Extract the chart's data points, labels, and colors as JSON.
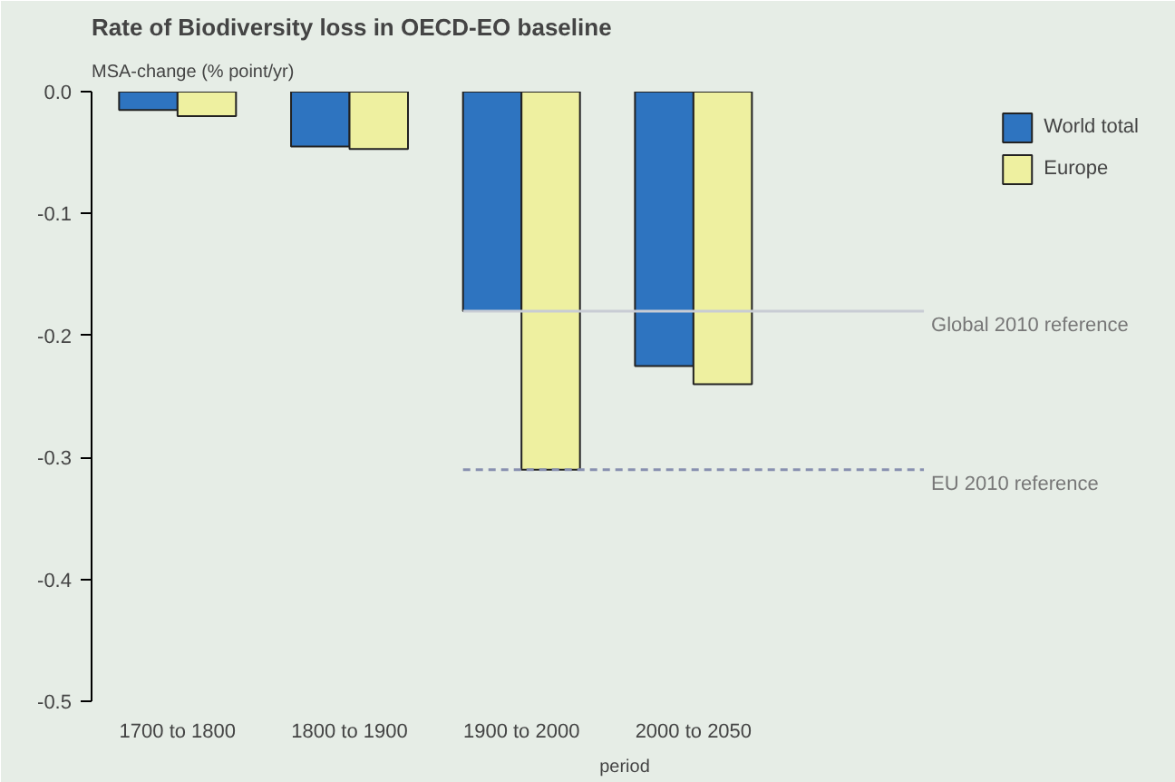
{
  "chart_data": {
    "type": "bar",
    "title": "Rate of Biodiversity loss in OECD-EO baseline",
    "ylabel": "MSA-change (% point/yr)",
    "xlabel": "period",
    "categories": [
      "1700 to 1800",
      "1800 to 1900",
      "1900 to 2000",
      "2000 to 2050"
    ],
    "series": [
      {
        "name": "World total",
        "color": "#2e74c0",
        "values": [
          -0.015,
          -0.045,
          -0.18,
          -0.225
        ]
      },
      {
        "name": "Europe",
        "color": "#eef0a0",
        "values": [
          -0.02,
          -0.047,
          -0.31,
          -0.24
        ]
      }
    ],
    "ylim": [
      -0.5,
      0.0
    ],
    "yticks": [
      {
        "value": 0.0,
        "label": "0.0"
      },
      {
        "value": -0.1,
        "label": "-0.1"
      },
      {
        "value": -0.2,
        "label": "-0.2"
      },
      {
        "value": -0.3,
        "label": "-0.3"
      },
      {
        "value": -0.4,
        "label": "-0.4"
      },
      {
        "value": -0.5,
        "label": "-0.5"
      }
    ],
    "ref_lines": [
      {
        "axis": "y",
        "value": -0.18,
        "label": "Global 2010 reference",
        "color": "#c8ccd4",
        "line_style": "solid"
      },
      {
        "axis": "y",
        "value": -0.31,
        "label": "EU 2010 reference",
        "color": "#8890b0",
        "line_style": "dashed"
      }
    ],
    "legend": "top right",
    "grid": false
  }
}
